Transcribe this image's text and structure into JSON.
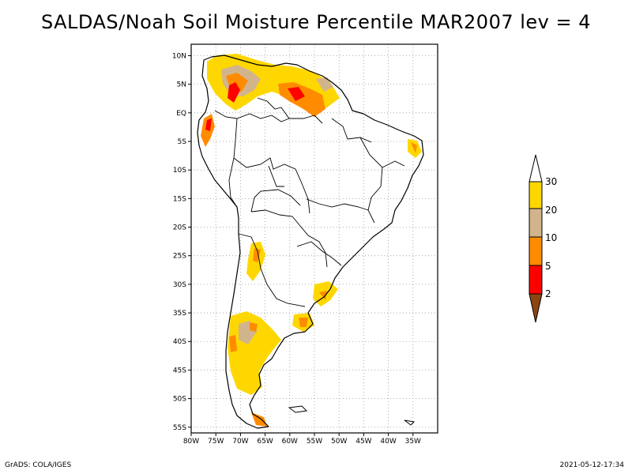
{
  "title": "SALDAS/Noah Soil Moisture Percentile MAR2007 lev = 4",
  "map": {
    "lon_range": [
      -80,
      -30
    ],
    "lat_range": [
      -56,
      12
    ],
    "lon_ticks": [
      {
        "value": -80,
        "label": "80W"
      },
      {
        "value": -75,
        "label": "75W"
      },
      {
        "value": -70,
        "label": "70W"
      },
      {
        "value": -65,
        "label": "65W"
      },
      {
        "value": -60,
        "label": "60W"
      },
      {
        "value": -55,
        "label": "55W"
      },
      {
        "value": -50,
        "label": "50W"
      },
      {
        "value": -45,
        "label": "45W"
      },
      {
        "value": -40,
        "label": "40W"
      },
      {
        "value": -35,
        "label": "35W"
      }
    ],
    "lat_ticks": [
      {
        "value": 10,
        "label": "10N"
      },
      {
        "value": 5,
        "label": "5N"
      },
      {
        "value": 0,
        "label": "EQ"
      },
      {
        "value": -5,
        "label": "5S"
      },
      {
        "value": -10,
        "label": "10S"
      },
      {
        "value": -15,
        "label": "15S"
      },
      {
        "value": -20,
        "label": "20S"
      },
      {
        "value": -25,
        "label": "25S"
      },
      {
        "value": -30,
        "label": "30S"
      },
      {
        "value": -35,
        "label": "35S"
      },
      {
        "value": -40,
        "label": "40S"
      },
      {
        "value": -45,
        "label": "45S"
      },
      {
        "value": -50,
        "label": "50S"
      },
      {
        "value": -55,
        "label": "55S"
      }
    ],
    "grid": true,
    "colors": {
      "below_2": "#8b4513",
      "2_to_5": "#ff0000",
      "5_to_10": "#ff8c00",
      "10_to_20": "#d2b48c",
      "20_to_30": "#ffd700",
      "above_30": "#ffffff"
    }
  },
  "legend": {
    "labels": [
      "30",
      "20",
      "10",
      "5",
      "2"
    ],
    "colors": [
      "#ffffff",
      "#ffd700",
      "#d2b48c",
      "#ff8c00",
      "#ff0000",
      "#8b4513"
    ]
  },
  "footer": {
    "left": "GrADS: COLA/IGES",
    "right": "2021-05-12-17:34"
  }
}
